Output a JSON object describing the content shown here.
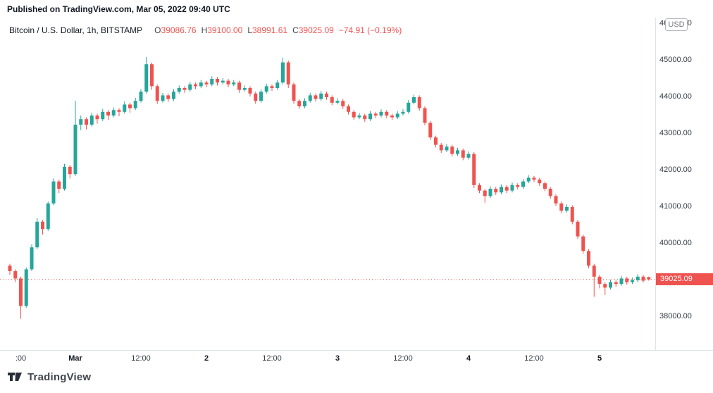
{
  "header": {
    "published_line": "Published on TradingView.com, Mar 05, 2022 09:40 UTC"
  },
  "legend": {
    "symbol": "Bitcoin / U.S. Dollar, 1h, BITSTAMP",
    "ohlc": [
      {
        "k": "O",
        "v": "39086.76"
      },
      {
        "k": "H",
        "v": "39100.00"
      },
      {
        "k": "L",
        "v": "38991.61"
      },
      {
        "k": "C",
        "v": "39025.09"
      }
    ],
    "change": "−74.91 (−0.19%)"
  },
  "price_axis": {
    "currency": "USD",
    "labels": [
      {
        "text": "46000.00",
        "price": 46000
      },
      {
        "text": "45000.00",
        "price": 45000
      },
      {
        "text": "44000.00",
        "price": 44000
      },
      {
        "text": "43000.00",
        "price": 43000
      },
      {
        "text": "42000.00",
        "price": 42000
      },
      {
        "text": "41000.00",
        "price": 41000
      },
      {
        "text": "40000.00",
        "price": 40000
      },
      {
        "text": "38000.00",
        "price": 38000
      }
    ],
    "last_price": 39025.09,
    "last_price_label": "39025.09"
  },
  "time_axis": {
    "labels": [
      {
        "text": ":00",
        "i": 2,
        "major": false
      },
      {
        "text": "Mar",
        "i": 12,
        "major": true
      },
      {
        "text": "12:00",
        "i": 24,
        "major": false
      },
      {
        "text": "2",
        "i": 36,
        "major": true
      },
      {
        "text": "12:00",
        "i": 48,
        "major": false
      },
      {
        "text": "3",
        "i": 60,
        "major": true
      },
      {
        "text": "12:00",
        "i": 72,
        "major": false
      },
      {
        "text": "4",
        "i": 84,
        "major": true
      },
      {
        "text": "12:00",
        "i": 96,
        "major": false
      },
      {
        "text": "5",
        "i": 108,
        "major": true
      }
    ]
  },
  "footer": {
    "brand": "TradingView"
  },
  "colors": {
    "up": "#26a69a",
    "down": "#ef5350",
    "last_price_line": "#ef5350",
    "axis_line": "#e0e3eb",
    "text": "#131722"
  },
  "chart_data": {
    "type": "candlestick",
    "title": "Bitcoin / U.S. Dollar",
    "interval": "1h",
    "exchange": "BITSTAMP",
    "last_ohlc": {
      "open": 39086.76,
      "high": 39100.0,
      "low": 38991.61,
      "close": 39025.09,
      "change": -74.91,
      "change_pct": -0.19
    },
    "y_range": [
      37800,
      46200
    ],
    "legend_position": "top-left",
    "grid": false,
    "candles": [
      [
        39400,
        39450,
        39150,
        39250
      ],
      [
        39250,
        39300,
        38950,
        39050
      ],
      [
        39050,
        39100,
        37950,
        38300
      ],
      [
        38300,
        39350,
        38250,
        39300
      ],
      [
        39300,
        39980,
        39250,
        39900
      ],
      [
        39900,
        40700,
        39850,
        40600
      ],
      [
        40600,
        40650,
        40250,
        40400
      ],
      [
        40400,
        41150,
        40350,
        41100
      ],
      [
        41100,
        41780,
        41050,
        41700
      ],
      [
        41700,
        41750,
        41380,
        41500
      ],
      [
        41500,
        42180,
        41450,
        42100
      ],
      [
        42100,
        42150,
        41780,
        41900
      ],
      [
        41900,
        43900,
        41850,
        43250
      ],
      [
        43250,
        43500,
        43100,
        43400
      ],
      [
        43400,
        43450,
        43120,
        43250
      ],
      [
        43250,
        43580,
        43200,
        43500
      ],
      [
        43500,
        43550,
        43280,
        43400
      ],
      [
        43400,
        43680,
        43350,
        43600
      ],
      [
        43600,
        43650,
        43380,
        43500
      ],
      [
        43500,
        43720,
        43450,
        43650
      ],
      [
        43650,
        43700,
        43480,
        43600
      ],
      [
        43600,
        43880,
        43550,
        43800
      ],
      [
        43800,
        43850,
        43580,
        43700
      ],
      [
        43700,
        43980,
        43650,
        43900
      ],
      [
        43900,
        44220,
        43850,
        44150
      ],
      [
        44150,
        45100,
        44100,
        44900
      ],
      [
        44900,
        44950,
        44200,
        44300
      ],
      [
        44300,
        44350,
        43820,
        43900
      ],
      [
        43900,
        44120,
        43850,
        44050
      ],
      [
        44050,
        44100,
        43870,
        43950
      ],
      [
        43950,
        44220,
        43900,
        44150
      ],
      [
        44150,
        44320,
        44100,
        44250
      ],
      [
        44250,
        44300,
        44120,
        44200
      ],
      [
        44200,
        44420,
        44150,
        44350
      ],
      [
        44350,
        44400,
        44220,
        44300
      ],
      [
        44300,
        44470,
        44250,
        44400
      ],
      [
        44400,
        44450,
        44270,
        44350
      ],
      [
        44350,
        44570,
        44300,
        44500
      ],
      [
        44500,
        44550,
        44320,
        44400
      ],
      [
        44400,
        44520,
        44350,
        44450
      ],
      [
        44450,
        44500,
        44270,
        44350
      ],
      [
        44350,
        44470,
        44300,
        44400
      ],
      [
        44400,
        44450,
        44120,
        44200
      ],
      [
        44200,
        44320,
        44150,
        44250
      ],
      [
        44250,
        44300,
        44020,
        44100
      ],
      [
        44100,
        44150,
        43820,
        43900
      ],
      [
        43900,
        44220,
        43850,
        44150
      ],
      [
        44150,
        44370,
        44100,
        44300
      ],
      [
        44300,
        44350,
        44170,
        44250
      ],
      [
        44250,
        44470,
        44200,
        44400
      ],
      [
        44400,
        45080,
        44350,
        44950
      ],
      [
        44950,
        45000,
        44250,
        44350
      ],
      [
        44350,
        44400,
        43820,
        43900
      ],
      [
        43900,
        43950,
        43680,
        43750
      ],
      [
        43750,
        43970,
        43700,
        43900
      ],
      [
        43900,
        44120,
        43850,
        44050
      ],
      [
        44050,
        44100,
        43880,
        43950
      ],
      [
        43950,
        44170,
        43900,
        44100
      ],
      [
        44100,
        44150,
        43930,
        44000
      ],
      [
        44000,
        44050,
        43780,
        43850
      ],
      [
        43850,
        43970,
        43800,
        43900
      ],
      [
        43900,
        43950,
        43680,
        43750
      ],
      [
        43750,
        43800,
        43530,
        43600
      ],
      [
        43600,
        43650,
        43380,
        43450
      ],
      [
        43450,
        43570,
        43400,
        43500
      ],
      [
        43500,
        43550,
        43330,
        43400
      ],
      [
        43400,
        43620,
        43350,
        43550
      ],
      [
        43550,
        43600,
        43430,
        43500
      ],
      [
        43500,
        43670,
        43450,
        43600
      ],
      [
        43600,
        43650,
        43430,
        43500
      ],
      [
        43500,
        43550,
        43380,
        43450
      ],
      [
        43450,
        43620,
        43400,
        43550
      ],
      [
        43550,
        43670,
        43500,
        43600
      ],
      [
        43600,
        43920,
        43550,
        43850
      ],
      [
        43850,
        44070,
        43800,
        44000
      ],
      [
        44000,
        44050,
        43630,
        43700
      ],
      [
        43700,
        43750,
        43230,
        43300
      ],
      [
        43300,
        43350,
        42830,
        42900
      ],
      [
        42900,
        42950,
        42630,
        42700
      ],
      [
        42700,
        42750,
        42480,
        42550
      ],
      [
        42550,
        42720,
        42500,
        42650
      ],
      [
        42650,
        42700,
        42380,
        42450
      ],
      [
        42450,
        42620,
        42400,
        42550
      ],
      [
        42550,
        42600,
        42280,
        42350
      ],
      [
        42350,
        42520,
        42300,
        42450
      ],
      [
        42450,
        42500,
        41520,
        41600
      ],
      [
        41600,
        41650,
        41380,
        41450
      ],
      [
        41450,
        41500,
        41120,
        41300
      ],
      [
        41300,
        41570,
        41250,
        41500
      ],
      [
        41500,
        41550,
        41330,
        41400
      ],
      [
        41400,
        41620,
        41350,
        41550
      ],
      [
        41550,
        41600,
        41380,
        41450
      ],
      [
        41450,
        41670,
        41400,
        41600
      ],
      [
        41600,
        41650,
        41480,
        41550
      ],
      [
        41550,
        41770,
        41500,
        41700
      ],
      [
        41700,
        41870,
        41650,
        41800
      ],
      [
        41800,
        41850,
        41680,
        41750
      ],
      [
        41750,
        41800,
        41580,
        41650
      ],
      [
        41650,
        41700,
        41430,
        41500
      ],
      [
        41500,
        41550,
        41230,
        41300
      ],
      [
        41300,
        41350,
        41030,
        41100
      ],
      [
        41100,
        41150,
        40830,
        40900
      ],
      [
        40900,
        41070,
        40850,
        41000
      ],
      [
        41000,
        41050,
        40530,
        40600
      ],
      [
        40600,
        40650,
        40130,
        40200
      ],
      [
        40200,
        40250,
        39730,
        39800
      ],
      [
        39800,
        39850,
        39330,
        39400
      ],
      [
        39400,
        39450,
        38550,
        39100
      ],
      [
        39100,
        39150,
        38780,
        38900
      ],
      [
        38900,
        38950,
        38600,
        38800
      ],
      [
        38800,
        39020,
        38750,
        38950
      ],
      [
        38950,
        39000,
        38820,
        38900
      ],
      [
        38900,
        39120,
        38850,
        39050
      ],
      [
        39050,
        39100,
        38880,
        38950
      ],
      [
        38950,
        39070,
        38900,
        39000
      ],
      [
        39000,
        39170,
        38950,
        39100
      ],
      [
        39100,
        39150,
        38940,
        38990
      ],
      [
        39086.76,
        39100.0,
        38991.61,
        39025.09
      ]
    ]
  }
}
